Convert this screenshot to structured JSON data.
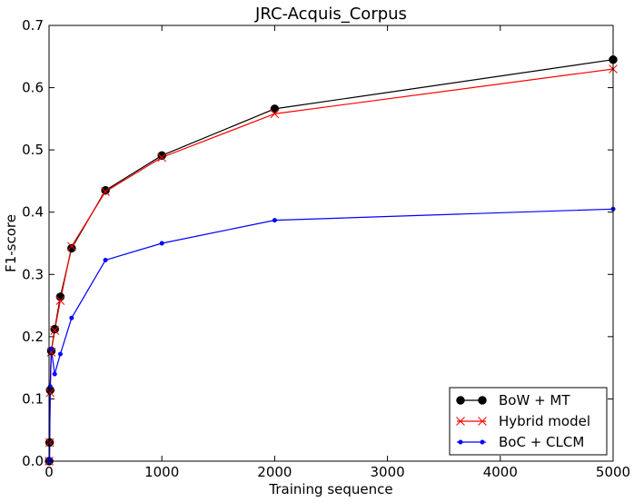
{
  "chart_data": {
    "type": "line",
    "title": "JRC-Acquis_Corpus",
    "xlabel": "Training sequence",
    "ylabel": "F1-score",
    "xlim": [
      0,
      5000
    ],
    "ylim": [
      0,
      0.7
    ],
    "xticks": [
      0,
      1000,
      2000,
      3000,
      4000,
      5000
    ],
    "yticks": [
      0.0,
      0.1,
      0.2,
      0.3,
      0.4,
      0.5,
      0.6,
      0.7
    ],
    "xtick_labels": [
      "0",
      "1000",
      "2000",
      "3000",
      "4000",
      "5000"
    ],
    "ytick_labels": [
      "0.0",
      "0.1",
      "0.2",
      "0.3",
      "0.4",
      "0.5",
      "0.6",
      "0.7"
    ],
    "grid": false,
    "legend_position": "lower-right",
    "series": [
      {
        "name": "BoW + MT",
        "color": "#000000",
        "marker": "circle",
        "x": [
          1,
          5,
          10,
          20,
          50,
          100,
          200,
          500,
          1000,
          2000,
          5000
        ],
        "y": [
          0.0,
          0.03,
          0.114,
          0.177,
          0.212,
          0.264,
          0.342,
          0.435,
          0.491,
          0.566,
          0.645
        ]
      },
      {
        "name": "Hybrid model",
        "color": "#ff0000",
        "marker": "x",
        "x": [
          1,
          5,
          10,
          20,
          50,
          100,
          200,
          500,
          1000,
          2000,
          5000
        ],
        "y": [
          0.0,
          0.03,
          0.11,
          0.175,
          0.21,
          0.258,
          0.345,
          0.433,
          0.488,
          0.558,
          0.63
        ]
      },
      {
        "name": "BoC + CLCM",
        "color": "#0000ff",
        "marker": "dot",
        "x": [
          1,
          5,
          10,
          20,
          50,
          100,
          200,
          500,
          1000,
          2000,
          5000
        ],
        "y": [
          0.0,
          0.003,
          0.12,
          0.18,
          0.14,
          0.172,
          0.23,
          0.323,
          0.35,
          0.387,
          0.405
        ]
      }
    ]
  }
}
